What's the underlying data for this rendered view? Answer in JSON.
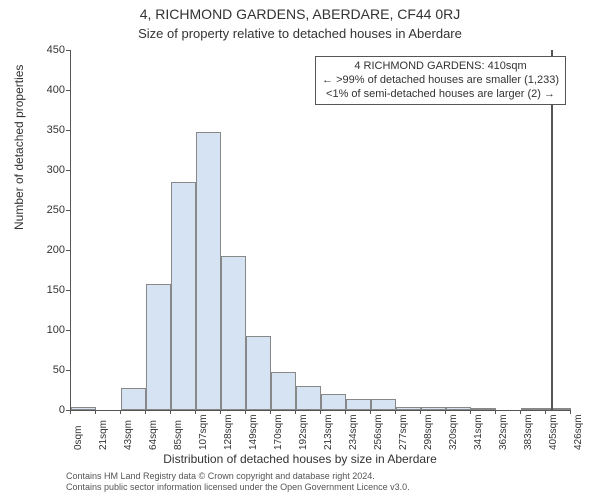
{
  "chart": {
    "type": "histogram",
    "title": "4, RICHMOND GARDENS, ABERDARE, CF44 0RJ",
    "subtitle": "Size of property relative to detached houses in Aberdare",
    "xlabel": "Distribution of detached houses by size in Aberdare",
    "ylabel": "Number of detached properties",
    "background_color": "#ffffff",
    "bar_fill": "#d6e3f3",
    "bar_border": "#888888",
    "axis_color": "#555555",
    "text_color": "#333333",
    "title_fontsize": 14,
    "subtitle_fontsize": 13,
    "axis_label_fontsize": 12,
    "tick_fontsize": 11,
    "xtick_fontsize": 10,
    "annotation_fontsize": 11,
    "footer_fontsize": 9,
    "ylim": [
      0,
      450
    ],
    "ytick_step": 50,
    "yticks": [
      0,
      50,
      100,
      150,
      200,
      250,
      300,
      350,
      400,
      450
    ],
    "xticks": [
      "0sqm",
      "21sqm",
      "43sqm",
      "64sqm",
      "85sqm",
      "107sqm",
      "128sqm",
      "149sqm",
      "170sqm",
      "192sqm",
      "213sqm",
      "234sqm",
      "256sqm",
      "277sqm",
      "298sqm",
      "320sqm",
      "341sqm",
      "362sqm",
      "383sqm",
      "405sqm",
      "426sqm"
    ],
    "values": [
      4,
      0,
      28,
      158,
      285,
      348,
      192,
      92,
      48,
      30,
      20,
      14,
      14,
      4,
      4,
      4,
      2,
      0,
      2,
      2
    ],
    "marker": {
      "x_index": 19.2,
      "color": "#555555"
    },
    "annotation": {
      "lines": [
        "4 RICHMOND GARDENS: 410sqm",
        "← >99% of detached houses are smaller (1,233)",
        "<1% of semi-detached houses are larger (2) →"
      ],
      "border_color": "#555555",
      "bg_color": "#ffffff"
    }
  },
  "footer": {
    "line1": "Contains HM Land Registry data © Crown copyright and database right 2024.",
    "line2": "Contains public sector information licensed under the Open Government Licence v3.0."
  }
}
